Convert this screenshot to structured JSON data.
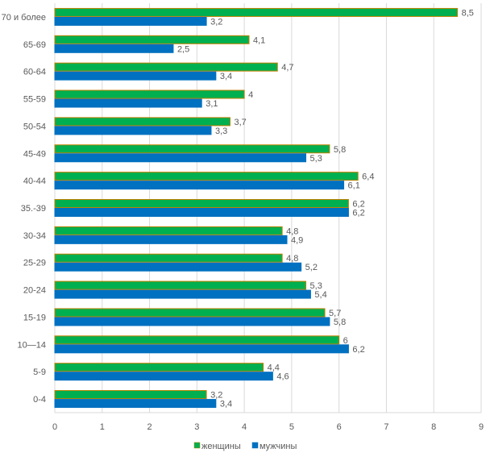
{
  "chart_data": {
    "type": "bar",
    "orientation": "horizontal",
    "categories": [
      "70 и более",
      "65-69",
      "60-64",
      "55-59",
      "50-54",
      "45-49",
      "40-44",
      "35.-39",
      "30-34",
      "25-29",
      "20-24",
      "15-19",
      "10—14",
      "5-9",
      "0-4"
    ],
    "series": [
      {
        "name": "женщины",
        "color": "#00b050",
        "border": "#c08000",
        "values": [
          8.5,
          4.1,
          4.7,
          4,
          3.7,
          5.8,
          6.4,
          6.2,
          4.8,
          4.8,
          5.3,
          5.7,
          6,
          4.4,
          3.2
        ],
        "labels": [
          "8,5",
          "4,1",
          "4,7",
          "4",
          "3,7",
          "5,8",
          "6,4",
          "6,2",
          "4,8",
          "4,8",
          "5,3",
          "5,7",
          "6",
          "4,4",
          "3,2"
        ]
      },
      {
        "name": "мужчины",
        "color": "#0070c0",
        "border": "#0070c0",
        "values": [
          3.2,
          2.5,
          3.4,
          3.1,
          3.3,
          5.3,
          6.1,
          6.2,
          4.9,
          5.2,
          5.4,
          5.8,
          6.2,
          4.6,
          3.4
        ],
        "labels": [
          "3,2",
          "2,5",
          "3,4",
          "3,1",
          "3,3",
          "5,3",
          "6,1",
          "6,2",
          "4,9",
          "5,2",
          "5,4",
          "5,8",
          "6,2",
          "4,6",
          "3,4"
        ]
      }
    ],
    "xlim": [
      0,
      9
    ],
    "xticks": [
      "0",
      "1",
      "2",
      "3",
      "4",
      "5",
      "6",
      "7",
      "8",
      "9"
    ],
    "grid": true,
    "legend": "bottom"
  }
}
